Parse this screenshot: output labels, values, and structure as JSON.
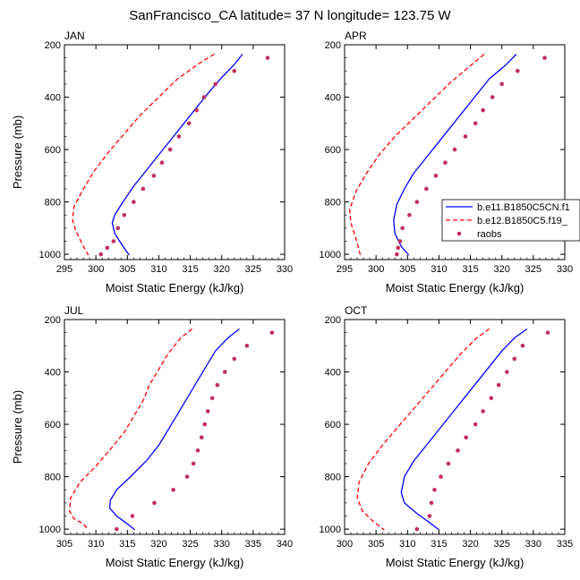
{
  "figure": {
    "title": "SanFrancisco_CA  latitude= 37 N longitude= 123.75 W"
  },
  "legend": {
    "entries": [
      {
        "label": "b.e11.B1850C5CN.f1",
        "style": "solid",
        "color": "#0000ff"
      },
      {
        "label": "b.e12.B1850C5.f19_",
        "style": "dashed",
        "color": "#ff0000"
      },
      {
        "label": "raobs",
        "style": "dot",
        "color": "#c0305a"
      }
    ]
  },
  "colors": {
    "model1": "#0000ff",
    "model2": "#ff0000",
    "obs": "#c0305a"
  },
  "chart_data": [
    {
      "type": "line",
      "panel_label": "JAN",
      "xlabel": "Moist Static Energy (kJ/kg)",
      "ylabel": "Pressure (mb)",
      "xlim": [
        295,
        330
      ],
      "ylim": [
        1020,
        200
      ],
      "xticks": [
        295,
        300,
        305,
        310,
        315,
        320,
        325,
        330
      ],
      "yticks": [
        200,
        400,
        600,
        800,
        1000
      ],
      "series": [
        {
          "name": "b.e11.B1850C5CN.f1",
          "style": "solid",
          "color": "#0000ff",
          "x": [
            323.3,
            322.0,
            320.0,
            318.0,
            316.0,
            314.0,
            312.0,
            310.0,
            308.0,
            306.0,
            304.3,
            303.0,
            302.6,
            303.0,
            304.3,
            305.3
          ],
          "y": [
            236,
            275,
            325,
            380,
            440,
            500,
            560,
            620,
            680,
            740,
            800,
            850,
            880,
            920,
            970,
            1003
          ]
        },
        {
          "name": "b.e12.B1850C5.f19_",
          "style": "dashed",
          "color": "#ff0000",
          "x": [
            318.8,
            316.5,
            313.0,
            310.0,
            307.0,
            304.5,
            302.0,
            299.8,
            298.0,
            296.5,
            296.3,
            296.8,
            297.8,
            298.8
          ],
          "y": [
            236,
            270,
            330,
            400,
            470,
            540,
            610,
            680,
            750,
            820,
            870,
            910,
            960,
            1003
          ]
        },
        {
          "name": "raobs",
          "style": "dot",
          "color": "#c0305a",
          "x": [
            327.3,
            322.0,
            319.0,
            317.2,
            316.0,
            314.8,
            313.2,
            311.8,
            310.5,
            309.2,
            307.5,
            306.0,
            304.5,
            303.5,
            302.8,
            301.8,
            300.8
          ],
          "y": [
            250,
            300,
            350,
            400,
            450,
            500,
            550,
            600,
            650,
            700,
            750,
            800,
            850,
            900,
            950,
            975,
            1000
          ]
        }
      ]
    },
    {
      "type": "line",
      "panel_label": "APR",
      "xlabel": "Moist Static Energy (kJ/kg)",
      "ylabel": "",
      "xlim": [
        295,
        330
      ],
      "ylim": [
        1020,
        200
      ],
      "xticks": [
        295,
        300,
        305,
        310,
        315,
        320,
        325,
        330
      ],
      "yticks": [
        200,
        400,
        600,
        800,
        1000
      ],
      "series": [
        {
          "name": "b.e11.B1850C5CN.f1",
          "style": "solid",
          "color": "#0000ff",
          "x": [
            322.3,
            320.5,
            318.0,
            316.0,
            314.0,
            312.0,
            310.0,
            308.0,
            306.0,
            304.5,
            303.3,
            302.8,
            303.0,
            304.0,
            305.2
          ],
          "y": [
            236,
            280,
            330,
            390,
            450,
            510,
            570,
            630,
            690,
            750,
            810,
            870,
            920,
            970,
            1003
          ]
        },
        {
          "name": "b.e12.B1850C5.f19_",
          "style": "dashed",
          "color": "#ff0000",
          "x": [
            317.2,
            315.0,
            312.0,
            309.0,
            306.0,
            303.0,
            300.5,
            298.5,
            296.8,
            295.8,
            296.0,
            296.8,
            297.5
          ],
          "y": [
            236,
            280,
            340,
            410,
            480,
            550,
            620,
            690,
            760,
            830,
            880,
            940,
            1003
          ]
        },
        {
          "name": "raobs",
          "style": "dot",
          "color": "#c0305a",
          "x": [
            326.8,
            322.5,
            320.0,
            318.5,
            317.0,
            315.8,
            314.2,
            312.5,
            311.0,
            309.5,
            308.0,
            306.5,
            305.3,
            304.2,
            303.8,
            303.5,
            303.3
          ],
          "y": [
            250,
            300,
            350,
            400,
            450,
            500,
            550,
            600,
            650,
            700,
            750,
            800,
            850,
            900,
            950,
            975,
            1000
          ]
        }
      ]
    },
    {
      "type": "line",
      "panel_label": "JUL",
      "xlabel": "Moist Static Energy (kJ/kg)",
      "ylabel": "Pressure (mb)",
      "xlim": [
        305,
        340
      ],
      "ylim": [
        1020,
        200
      ],
      "xticks": [
        305,
        310,
        315,
        320,
        325,
        330,
        335,
        340
      ],
      "yticks": [
        200,
        400,
        600,
        800,
        1000
      ],
      "series": [
        {
          "name": "b.e11.B1850C5CN.f1",
          "style": "solid",
          "color": "#0000ff",
          "x": [
            332.8,
            331.0,
            329.0,
            327.5,
            326.0,
            324.5,
            323.0,
            321.5,
            320.0,
            318.0,
            315.5,
            313.3,
            312.3,
            312.2,
            313.3,
            315.0,
            316.2
          ],
          "y": [
            236,
            270,
            320,
            380,
            440,
            500,
            560,
            620,
            680,
            740,
            800,
            850,
            890,
            920,
            950,
            980,
            1003
          ]
        },
        {
          "name": "b.e12.B1850C5.f19_",
          "style": "dashed",
          "color": "#ff0000",
          "x": [
            325.3,
            323.5,
            321.5,
            320.0,
            318.5,
            317.5,
            316.0,
            314.5,
            312.5,
            310.0,
            307.5,
            306.0,
            305.8,
            306.5,
            308.0,
            308.8
          ],
          "y": [
            236,
            270,
            330,
            390,
            450,
            510,
            570,
            630,
            690,
            760,
            820,
            880,
            930,
            960,
            980,
            1003
          ]
        },
        {
          "name": "raobs",
          "style": "dot",
          "color": "#c0305a",
          "x": [
            338.0,
            334.0,
            332.0,
            330.5,
            329.3,
            328.5,
            327.8,
            327.3,
            326.8,
            326.2,
            325.5,
            324.5,
            322.3,
            319.3,
            315.8,
            313.3
          ],
          "y": [
            250,
            300,
            350,
            400,
            450,
            500,
            550,
            600,
            650,
            700,
            750,
            800,
            850,
            900,
            950,
            1000
          ]
        }
      ]
    },
    {
      "type": "line",
      "panel_label": "OCT",
      "xlabel": "Moist Static Energy (kJ/kg)",
      "ylabel": "",
      "xlim": [
        300,
        335
      ],
      "ylim": [
        1020,
        200
      ],
      "xticks": [
        300,
        305,
        310,
        315,
        320,
        325,
        330,
        335
      ],
      "yticks": [
        200,
        400,
        600,
        800,
        1000
      ],
      "series": [
        {
          "name": "b.e11.B1850C5CN.f1",
          "style": "solid",
          "color": "#0000ff",
          "x": [
            329.0,
            327.0,
            325.0,
            323.0,
            321.0,
            319.0,
            317.0,
            315.0,
            313.0,
            311.0,
            309.5,
            309.0,
            309.5,
            311.5,
            313.5,
            315.0
          ],
          "y": [
            236,
            270,
            320,
            380,
            440,
            500,
            560,
            620,
            680,
            740,
            800,
            860,
            900,
            940,
            975,
            1003
          ]
        },
        {
          "name": "b.e12.B1850C5.f19_",
          "style": "dashed",
          "color": "#ff0000",
          "x": [
            323.0,
            321.0,
            318.5,
            316.0,
            313.5,
            311.0,
            308.5,
            306.0,
            303.8,
            302.3,
            302.0,
            302.8,
            304.5,
            306.3
          ],
          "y": [
            236,
            270,
            330,
            400,
            470,
            540,
            610,
            680,
            750,
            820,
            880,
            930,
            970,
            1003
          ]
        },
        {
          "name": "raobs",
          "style": "dot",
          "color": "#c0305a",
          "x": [
            332.3,
            328.3,
            327.0,
            325.8,
            324.5,
            323.3,
            322.0,
            320.8,
            319.3,
            318.0,
            316.5,
            315.3,
            314.3,
            313.8,
            313.5,
            311.5
          ],
          "y": [
            250,
            300,
            350,
            400,
            450,
            500,
            550,
            600,
            650,
            700,
            750,
            800,
            850,
            900,
            950,
            1000
          ]
        }
      ]
    }
  ]
}
